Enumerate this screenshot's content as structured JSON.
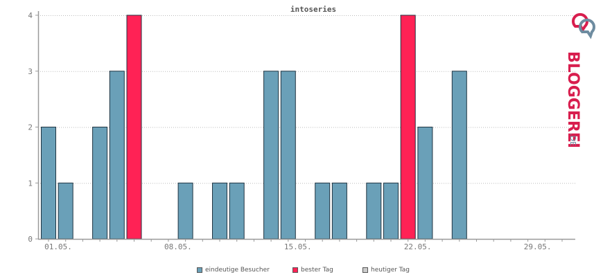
{
  "chart_data": {
    "type": "bar",
    "title": "intoseries",
    "ylim": [
      0,
      4
    ],
    "yticks": [
      "0",
      "1",
      "2",
      "3",
      "4"
    ],
    "x_ticklabels": [
      "01.05.",
      "08.05.",
      "15.05.",
      "22.05.",
      "29.05."
    ],
    "days": [
      "01.05.",
      "02.05.",
      "03.05.",
      "04.05.",
      "05.05.",
      "06.05.",
      "07.05.",
      "08.05.",
      "09.05.",
      "10.05.",
      "11.05.",
      "12.05.",
      "13.05.",
      "14.05.",
      "15.05.",
      "16.05.",
      "17.05.",
      "18.05.",
      "19.05.",
      "20.05.",
      "21.05.",
      "22.05.",
      "23.05.",
      "24.05.",
      "25.05.",
      "26.05.",
      "27.05.",
      "28.05.",
      "29.05.",
      "30.05.",
      "31.05."
    ],
    "series": [
      {
        "name": "eindeutige Besucher",
        "color": "#6aa0b8",
        "values": [
          2,
          1,
          0,
          2,
          3,
          4,
          0,
          0,
          1,
          0,
          1,
          1,
          0,
          3,
          3,
          0,
          1,
          1,
          0,
          1,
          1,
          4,
          2,
          0,
          3,
          0,
          0,
          0,
          0,
          0,
          0
        ]
      }
    ],
    "best_days": [
      "06.05.",
      "22.05."
    ],
    "best_color": "#ff2255",
    "grid": "horizontal dotted",
    "legend_position": "bottom"
  },
  "legend": [
    {
      "label": "eindeutige Besucher",
      "color": "#6aa0b8"
    },
    {
      "label": "bester Tag",
      "color": "#ff2255"
    },
    {
      "label": "heutiger Tag",
      "color": "#cccccc"
    }
  ],
  "brand": {
    "name": "BLOGGEREI",
    "suffix": ".DE",
    "color_primary": "#d81e4e",
    "color_secondary": "#6e8ca0"
  }
}
